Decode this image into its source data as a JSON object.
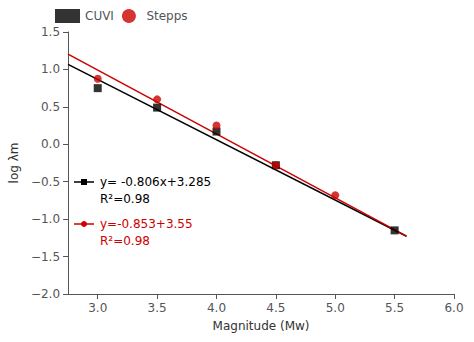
{
  "chart_data": {
    "type": "scatter",
    "xlabel": "Magnitude (Mw)",
    "ylabel": "log λm",
    "series": [
      {
        "name": "CUVI",
        "color": "#000000",
        "marker": "square",
        "x": [
          3.0,
          3.5,
          4.0,
          4.5,
          5.5
        ],
        "values": [
          0.75,
          0.49,
          0.17,
          -0.28,
          -1.15
        ],
        "fit_x": [
          2.75,
          5.6
        ],
        "fit_values": [
          1.0685,
          -1.2286
        ]
      },
      {
        "name": "Stepps",
        "color": "#cc0000",
        "marker": "circle",
        "x": [
          3.0,
          3.5,
          4.0,
          4.5,
          5.0
        ],
        "values": [
          0.875,
          0.6,
          0.25,
          -0.28,
          -0.68
        ],
        "fit_x": [
          2.75,
          5.6
        ],
        "fit_values": [
          1.20425,
          -1.2268
        ]
      }
    ],
    "annotations": [
      {
        "text": "y= -0.806x+3.285",
        "color": "#000000",
        "marker": "square"
      },
      {
        "text": "R²=0.98",
        "color": "#000000"
      },
      {
        "text": "y=-0.853+3.55",
        "color": "#cc0000",
        "marker": "circle"
      },
      {
        "text": "R²=0.98",
        "color": "#cc0000"
      }
    ],
    "xlim": [
      2.75,
      6.0
    ],
    "ylim": [
      -2.0,
      1.5
    ],
    "xticks": [
      {
        "value": 3.0,
        "label": "3.0"
      },
      {
        "value": 3.5,
        "label": "3.5"
      },
      {
        "value": 4.0,
        "label": "4.0"
      },
      {
        "value": 4.5,
        "label": "4.5"
      },
      {
        "value": 5.0,
        "label": "5.0"
      },
      {
        "value": 5.5,
        "label": "5.5"
      },
      {
        "value": 6.0,
        "label": "6.0"
      }
    ],
    "yticks": [
      {
        "value": -2.0,
        "label": "−2.0"
      },
      {
        "value": -1.5,
        "label": "−1.5"
      },
      {
        "value": -1.0,
        "label": "−1.0"
      },
      {
        "value": -0.5,
        "label": "−0.5"
      },
      {
        "value": 0.0,
        "label": "0.0"
      },
      {
        "value": 0.5,
        "label": "0.5"
      },
      {
        "value": 1.0,
        "label": "1.0"
      },
      {
        "value": 1.5,
        "label": "1.5"
      }
    ],
    "grid": false,
    "legend": "upper left"
  }
}
